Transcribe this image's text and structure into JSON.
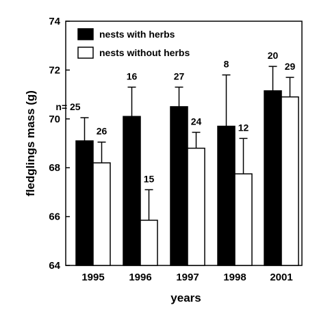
{
  "chart_data": {
    "type": "bar",
    "xlabel": "years",
    "ylabel": "fledglings mass (g)",
    "categories": [
      "1995",
      "1996",
      "1997",
      "1998",
      "2001"
    ],
    "ylim": [
      64,
      74
    ],
    "yticks": [
      64,
      66,
      68,
      70,
      72,
      74
    ],
    "grid": false,
    "legend_position": "top-left",
    "series": [
      {
        "name": "nests with herbs",
        "color": "#000000",
        "values": [
          69.1,
          70.1,
          70.5,
          69.7,
          71.15
        ],
        "error_upper": [
          70.05,
          71.3,
          71.3,
          71.8,
          72.15
        ],
        "n_labels": [
          "n= 25",
          "16",
          "27",
          "8",
          "20"
        ]
      },
      {
        "name": "nests without herbs",
        "color": "#ffffff",
        "values": [
          68.2,
          65.85,
          68.8,
          67.75,
          70.9
        ],
        "error_upper": [
          69.05,
          67.1,
          69.45,
          69.2,
          71.7
        ],
        "n_labels": [
          "26",
          "15",
          "24",
          "12",
          "29"
        ]
      }
    ]
  }
}
